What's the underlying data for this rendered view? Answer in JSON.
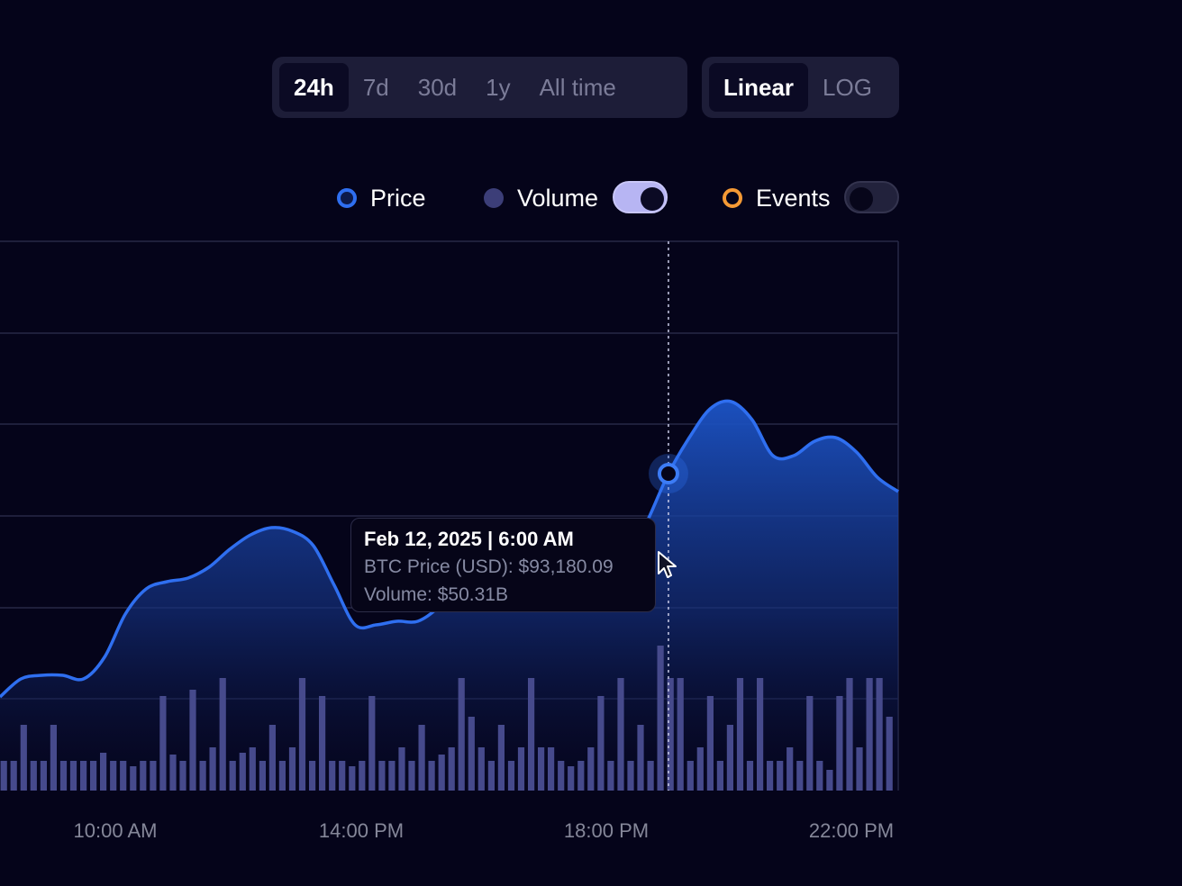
{
  "timeframe": {
    "options": [
      "24h",
      "7d",
      "30d",
      "1y",
      "All time"
    ],
    "selected": "24h"
  },
  "scale": {
    "options": [
      "Linear",
      "LOG"
    ],
    "selected": "Linear"
  },
  "legend": {
    "price_label": "Price",
    "volume_label": "Volume",
    "events_label": "Events",
    "volume_toggle_on": true,
    "events_toggle_on": false
  },
  "colors": {
    "background": "#05041a",
    "price_line": "#2f6ff0",
    "volume_bars": "#464a8c",
    "events": "#f59a35",
    "toggle_on": "#b7b5f3"
  },
  "tooltip": {
    "date": "Feb 12, 2025",
    "time": "6:00 AM",
    "price_label": "BTC Price (USD):",
    "price_value": "$93,180.09",
    "volume_label": "Volume:",
    "volume_value": "$50.31B"
  },
  "chart_data": {
    "type": "area",
    "x_tick_labels": [
      "10:00 AM",
      "14:00 PM",
      "18:00 PM",
      "22:00 PM"
    ],
    "grid": true,
    "legend_position": "top-right",
    "series": [
      {
        "name": "Price",
        "y_relative": [
          0.26,
          0.31,
          0.32,
          0.32,
          0.31,
          0.37,
          0.49,
          0.56,
          0.58,
          0.59,
          0.62,
          0.67,
          0.71,
          0.73,
          0.72,
          0.68,
          0.57,
          0.46,
          0.46,
          0.47,
          0.47,
          0.51,
          0.58,
          0.61,
          0.61,
          0.58,
          0.57,
          0.59,
          0.59,
          0.6,
          0.64,
          0.75,
          0.88,
          0.98,
          1.06,
          1.08,
          1.03,
          0.93,
          0.93,
          0.97,
          0.98,
          0.94,
          0.87,
          0.83
        ]
      },
      {
        "name": "Volume",
        "bars_relative": [
          0.33,
          0.33,
          0.73,
          0.33,
          0.33,
          0.73,
          0.33,
          0.33,
          0.33,
          0.33,
          0.42,
          0.33,
          0.33,
          0.27,
          0.33,
          0.33,
          1.05,
          0.4,
          0.33,
          1.12,
          0.33,
          0.48,
          1.25,
          0.33,
          0.42,
          0.48,
          0.33,
          0.73,
          0.33,
          0.48,
          1.25,
          0.33,
          1.05,
          0.33,
          0.33,
          0.27,
          0.33,
          1.05,
          0.33,
          0.33,
          0.48,
          0.33,
          0.73,
          0.33,
          0.4,
          0.48,
          1.25,
          0.82,
          0.48,
          0.33,
          0.73,
          0.33,
          0.48,
          1.25,
          0.48,
          0.48,
          0.33,
          0.27,
          0.33,
          0.48,
          1.05,
          0.33,
          1.25,
          0.33,
          0.73,
          0.33,
          1.61,
          1.25,
          1.25,
          0.33,
          0.48,
          1.05,
          0.33,
          0.73,
          1.25,
          0.33,
          1.25,
          0.33,
          0.33,
          0.48,
          0.33,
          1.05,
          0.33,
          0.23,
          1.05,
          1.25,
          0.48,
          1.25,
          1.25,
          0.82
        ]
      }
    ],
    "crosshair_index": 32
  }
}
